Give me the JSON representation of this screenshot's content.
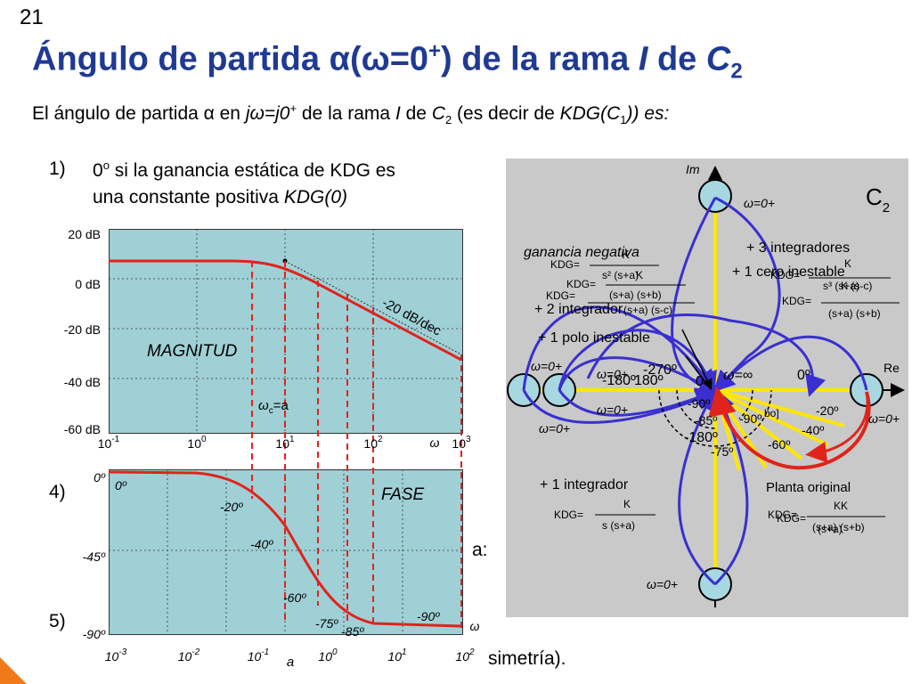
{
  "slide_number": "21",
  "title": {
    "prefix": "Ángulo de partida ",
    "alpha": "α",
    "open": "(",
    "omega": "ω",
    "eq": "=0",
    "sup": "+",
    "close": ")",
    "mid": " de la rama ",
    "branch": "I",
    "mid2": " de ",
    "c": "C",
    "c_sub": "2"
  },
  "intro": {
    "p1": "El ángulo de partida ",
    "alpha": "α",
    "p2": " en ",
    "jw": "jω=j0",
    "sup": "+",
    "p3": " de la rama ",
    "branch": "I",
    "p4": " de ",
    "c": "C",
    "c_sub": "2",
    "p5": " (es decir de ",
    "kdg": "KDG(C",
    "kdg_sub": "1",
    "p6": ")) es:"
  },
  "list": {
    "item1_num": "1)",
    "item1_deg": "0",
    "item1_sup": "o",
    "item1_text": " si la ganancia estática de KDG es",
    "item1_line2": "una constante positiva ",
    "item1_kdg": "KDG(0)",
    "item4_num": "4)",
    "item5_num": "5)",
    "partial_a": "a:",
    "partial_bottom": "simetría).",
    "partial_a_letter": "a"
  },
  "magnitude": {
    "y_ticks": [
      "20 dB",
      "0 dB",
      "-20 dB",
      "-40 dB",
      "-60 dB"
    ],
    "x_ticks": [
      {
        "b": "10",
        "e": "-1"
      },
      {
        "b": "10",
        "e": "0"
      },
      {
        "b": "10",
        "e": "1"
      },
      {
        "b": "10",
        "e": "2"
      },
      {
        "b": "10",
        "e": "3"
      }
    ],
    "x_omega": "ω",
    "label": "MAGNITUD",
    "slope_label": "-20 dB/dec",
    "corner_label": "ω",
    "corner_sub": "c",
    "corner_eq": "=a"
  },
  "phase": {
    "y_ticks": [
      "0º",
      "-45º",
      "-90º"
    ],
    "x_ticks": [
      {
        "b": "10",
        "e": "-3"
      },
      {
        "b": "10",
        "e": "-2"
      },
      {
        "b": "10",
        "e": "-1"
      },
      {
        "b": "10",
        "e": "0"
      },
      {
        "b": "10",
        "e": "1"
      },
      {
        "b": "10",
        "e": "2"
      }
    ],
    "x_omega": "ω",
    "label": "FASE",
    "annotations": [
      "0º",
      "-20º",
      "-40º",
      "-60º",
      "-75º",
      "-85º",
      "-90º"
    ]
  },
  "plane": {
    "c2": "C",
    "c2_sub": "2",
    "im": "Im",
    "re": "Re",
    "w0": "ω=0+",
    "winf": "ω=∞",
    "zero_deg": "0º",
    "neg_gain": "ganancia negativa",
    "three_int": "+ 3 integradores",
    "one_zero": "+ 1 cero inestable",
    "two_int": "+ 2 integrador",
    "one_pole": "+ 1 polo inestable",
    "one_int": "+ 1 integrador",
    "plant": "Planta original",
    "kdg": "KDG=",
    "k": "K",
    "kk": "KK",
    "f_neg_den": "s² (s+a)",
    "f_3int_num": "K (s-c)",
    "f_3int_den": "s³ (s+a)",
    "f_3int2_den": "(s+a) (s+b)",
    "f_2int_den": "(s+a) (s+b)",
    "f_2int2_den": "(s+a) (s-c)",
    "f_1int_den": "s (s+a)",
    "f_plant_den": "(s+a) (s+b)",
    "f_plant_den2": "(s+a)",
    "angles_left": [
      "-270º",
      "-180º",
      "180º",
      "0"
    ],
    "angles_mid": [
      "-90º",
      "-85º",
      "-90º",
      "-180º",
      "-75º"
    ],
    "angles_right": [
      "-20º",
      "-40º",
      "-60º"
    ],
    "bo": "bo]"
  }
}
